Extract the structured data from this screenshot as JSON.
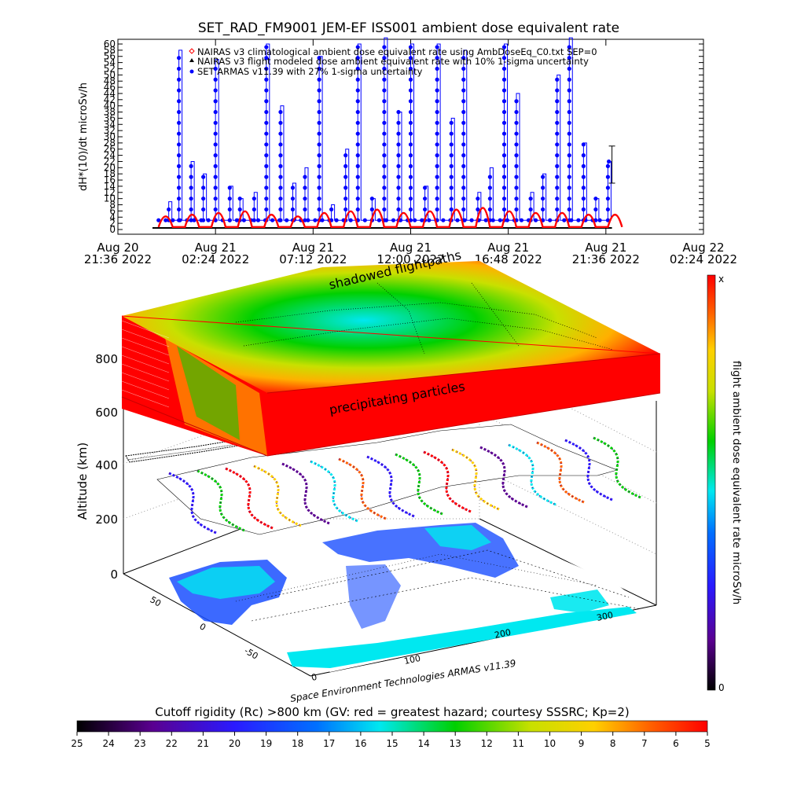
{
  "top_chart": {
    "title": "SET_RAD_FM9001  JEM-EF ISS001 ambient dose equivalent rate",
    "ylabel": "dH*(10)/dt microSv/h",
    "legend": [
      {
        "text": "NAIRAS v3 climatological ambient dose equivalent rate using AmbDoseEq_C0.txt SEP=0",
        "marker": "diamond",
        "color": "#ff0000"
      },
      {
        "text": "NAIRAS v3 flight modeled dose ambient equivalent rate with 10% 1-sigma uncertainty",
        "marker": "triangle",
        "color": "#000000"
      },
      {
        "text": "SET ARMAS v11.39 with 27% 1-sigma uncertainty",
        "marker": "circle",
        "color": "#0000ff"
      }
    ],
    "x_ticks": [
      {
        "l1": "Aug 20",
        "l2": "21:36 2022"
      },
      {
        "l1": "Aug 21",
        "l2": "02:24 2022"
      },
      {
        "l1": "Aug 21",
        "l2": "07:12 2022"
      },
      {
        "l1": "Aug 21",
        "l2": "12:00 2022"
      },
      {
        "l1": "Aug 21",
        "l2": "16:48 2022"
      },
      {
        "l1": "Aug 21",
        "l2": "21:36 2022"
      },
      {
        "l1": "Aug 22",
        "l2": "02:24 2022"
      }
    ],
    "y_ticks": [
      "0",
      "2",
      "4",
      "6",
      "8",
      "10",
      "12",
      "14",
      "16",
      "18",
      "20",
      "22",
      "24",
      "26",
      "28",
      "30",
      "32",
      "34",
      "36",
      "38",
      "40",
      "42",
      "44",
      "46",
      "48",
      "50",
      "52",
      "54",
      "56",
      "58",
      "60"
    ]
  },
  "chart_data": {
    "type": "line",
    "title": "SET_RAD_FM9001  JEM-EF ISS001 ambient dose equivalent rate",
    "ylabel": "dH*(10)/dt microSv/h",
    "ylim": [
      0,
      60
    ],
    "x_start": "Aug 20 21:36 2022",
    "x_end": "Aug 22 02:24 2022",
    "series": [
      {
        "name": "NAIRAS v3 climatological ambient dose equivalent rate using AmbDoseEq_C0.txt SEP=0",
        "color": "#ff0000",
        "x_hours": [
          2.0,
          3.3,
          4.6,
          5.9,
          7.2,
          8.5,
          9.8,
          11.1,
          12.4,
          13.7,
          15.0,
          16.3,
          17.6,
          18.9,
          20.2,
          21.5,
          22.8,
          24.1
        ],
        "values": [
          3.5,
          4.0,
          4.5,
          5.0,
          4.0,
          3.5,
          4.5,
          5.0,
          5.5,
          4.5,
          5.0,
          5.5,
          6.0,
          5.0,
          4.5,
          4.5,
          4.0,
          4.0
        ]
      },
      {
        "name": "SET ARMAS v11.39 with 27% 1-sigma uncertainty",
        "color": "#0000ff",
        "x_hours": [
          2.5,
          3.0,
          3.6,
          4.2,
          4.8,
          5.5,
          6.0,
          6.7,
          7.3,
          8.0,
          8.6,
          9.2,
          9.9,
          10.5,
          11.2,
          11.8,
          12.5,
          13.1,
          13.8,
          14.4,
          15.1,
          15.7,
          16.4,
          17.0,
          17.7,
          18.3,
          19.0,
          19.6,
          20.3,
          20.9,
          21.6,
          22.2,
          22.9,
          23.5,
          24.1
        ],
        "values": [
          9,
          58,
          22,
          18,
          55,
          14,
          10,
          12,
          60,
          40,
          15,
          20,
          56,
          8,
          26,
          60,
          10,
          62,
          38,
          60,
          14,
          60,
          36,
          58,
          12,
          20,
          60,
          44,
          12,
          18,
          50,
          62,
          28,
          10,
          22
        ]
      }
    ],
    "right_errorbar": {
      "x_hours": 24.3,
      "center": 22,
      "low": 15,
      "high": 27
    }
  },
  "three_d": {
    "ylabel": "Altitude (km)",
    "z_ticks": [
      "800",
      "600",
      "400",
      "200",
      "0"
    ],
    "lon_ticks": [
      "0",
      "100",
      "200",
      "300"
    ],
    "lat_ticks": [
      "50",
      "0",
      "-50"
    ],
    "label_shadowed": "shadowed flightpaths",
    "label_precip": "precipitating particles",
    "credit": "Space Environment Technologies ARMAS v11.39"
  },
  "right_colorbar": {
    "label": "flight ambient dose equivalent rate microSv/h",
    "top": "x",
    "bottom": "0"
  },
  "bottom_colorbar": {
    "title": "Cutoff rigidity (Rc) >800 km (GV: red = greatest hazard; courtesy SSSRC; Kp=2)",
    "ticks": [
      "25",
      "24",
      "23",
      "22",
      "21",
      "20",
      "19",
      "18",
      "17",
      "16",
      "15",
      "14",
      "13",
      "12",
      "11",
      "10",
      "9",
      "8",
      "7",
      "6",
      "5"
    ]
  },
  "colors": {
    "armas_blue": "#0000ff",
    "nairas_red": "#ff0000",
    "hazard_red": "#ff0000",
    "mid_green": "#00d000",
    "low_cyan": "#00e8f0"
  }
}
